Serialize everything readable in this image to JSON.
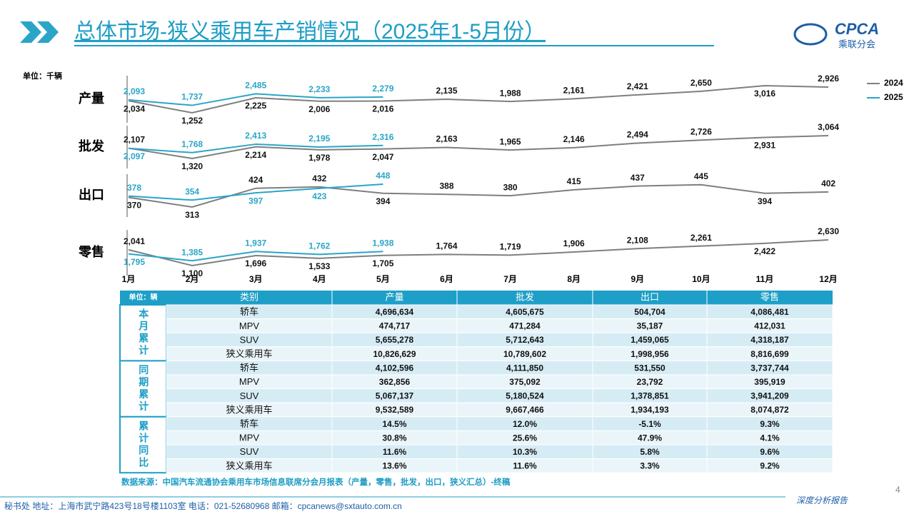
{
  "header": {
    "title": "总体市场-狭义乘用车产销情况（2025年1-5月份）",
    "logo": "CPCA",
    "logo_sub": "乘联分会"
  },
  "chart_data": {
    "type": "line",
    "unit": "单位：千辆",
    "categories": [
      "1月",
      "2月",
      "3月",
      "4月",
      "5月",
      "6月",
      "7月",
      "8月",
      "9月",
      "10月",
      "11月",
      "12月"
    ],
    "legend": [
      {
        "name": "2024",
        "color": "#7f7f7f"
      },
      {
        "name": "2025",
        "color": "#2aa5c8"
      }
    ],
    "panels": [
      {
        "title": "产量",
        "series": [
          {
            "values": [
              2034,
              1252,
              2225,
              2006,
              2016,
              2135,
              1988,
              2161,
              2421,
              2650,
              3016,
              2926
            ],
            "value_labels": [
              "2,034",
              "1,252",
              "2,225",
              "2,006",
              "2,016",
              "2,135",
              "1,988",
              "2,161",
              "2,421",
              "2,650",
              "3,016",
              "2,926"
            ]
          },
          {
            "values": [
              2093,
              1737,
              2485,
              2233,
              2279,
              null,
              null,
              null,
              null,
              null,
              null,
              null
            ],
            "value_labels": [
              "2,093",
              "1,737",
              "2,485",
              "2,233",
              "2,279",
              null,
              null,
              null,
              null,
              null,
              null,
              null
            ]
          }
        ]
      },
      {
        "title": "批发",
        "series": [
          {
            "values": [
              2107,
              1320,
              2214,
              1978,
              2047,
              2163,
              1965,
              2146,
              2494,
              2726,
              2931,
              3064
            ],
            "value_labels": [
              "2,107",
              "1,320",
              "2,214",
              "1,978",
              "2,047",
              "2,163",
              "1,965",
              "2,146",
              "2,494",
              "2,726",
              "2,931",
              "3,064"
            ]
          },
          {
            "values": [
              2097,
              1768,
              2413,
              2195,
              2316,
              null,
              null,
              null,
              null,
              null,
              null,
              null
            ],
            "value_labels": [
              "2,097",
              "1,768",
              "2,413",
              "2,195",
              "2,316",
              null,
              null,
              null,
              null,
              null,
              null,
              null
            ]
          }
        ]
      },
      {
        "title": "出口",
        "series": [
          {
            "values": [
              370,
              313,
              424,
              432,
              394,
              388,
              380,
              415,
              437,
              445,
              394,
              402
            ]
          },
          {
            "values": [
              378,
              354,
              397,
              423,
              448,
              null,
              null,
              null,
              null,
              null,
              null,
              null
            ]
          }
        ]
      },
      {
        "title": "零售",
        "series": [
          {
            "values": [
              2041,
              1100,
              1696,
              1533,
              1705,
              1764,
              1719,
              1906,
              2108,
              2261,
              2422,
              2630
            ],
            "value_labels": [
              "2,041",
              "1,100",
              "1,696",
              "1,533",
              "1,705",
              "1,764",
              "1,719",
              "1,906",
              "2,108",
              "2,261",
              "2,422",
              "2,630"
            ]
          },
          {
            "values": [
              1795,
              1385,
              1937,
              1762,
              1938,
              null,
              null,
              null,
              null,
              null,
              null,
              null
            ],
            "value_labels": [
              "1,795",
              "1,385",
              "1,937",
              "1,762",
              "1,938",
              null,
              null,
              null,
              null,
              null,
              null,
              null
            ]
          }
        ]
      }
    ]
  },
  "table": {
    "header": [
      "单位：辆",
      "类别",
      "产量",
      "批发",
      "出口",
      "零售"
    ],
    "groups": [
      {
        "label": "本月累计",
        "rows": [
          [
            "轿车",
            "4,696,634",
            "4,605,675",
            "504,704",
            "4,086,481"
          ],
          [
            "MPV",
            "474,717",
            "471,284",
            "35,187",
            "412,031"
          ],
          [
            "SUV",
            "5,655,278",
            "5,712,643",
            "1,459,065",
            "4,318,187"
          ],
          [
            "狭义乘用车",
            "10,826,629",
            "10,789,602",
            "1,998,956",
            "8,816,699"
          ]
        ]
      },
      {
        "label": "同期累计",
        "rows": [
          [
            "轿车",
            "4,102,596",
            "4,111,850",
            "531,550",
            "3,737,744"
          ],
          [
            "MPV",
            "362,856",
            "375,092",
            "23,792",
            "395,919"
          ],
          [
            "SUV",
            "5,067,137",
            "5,180,524",
            "1,378,851",
            "3,941,209"
          ],
          [
            "狭义乘用车",
            "9,532,589",
            "9,667,466",
            "1,934,193",
            "8,074,872"
          ]
        ]
      },
      {
        "label": "累计同比",
        "rows": [
          [
            "轿车",
            "14.5%",
            "12.0%",
            "-5.1%",
            "9.3%"
          ],
          [
            "MPV",
            "30.8%",
            "25.6%",
            "47.9%",
            "4.1%"
          ],
          [
            "SUV",
            "11.6%",
            "10.3%",
            "5.8%",
            "9.6%"
          ],
          [
            "狭义乘用车",
            "13.6%",
            "11.6%",
            "3.3%",
            "9.2%"
          ]
        ]
      }
    ]
  },
  "source": "数据来源：中国汽车流通协会乘用车市场信息联席分会月报表（产量，零售，批发，出口，狭义汇总）-终稿",
  "footer": {
    "address": "秘书处  地址：上海市武宁路423号18号楼1103室  电话：021-52680968  邮箱：cpcanews@sxtauto.com.cn",
    "report": "深度分析报告",
    "page": "4"
  }
}
